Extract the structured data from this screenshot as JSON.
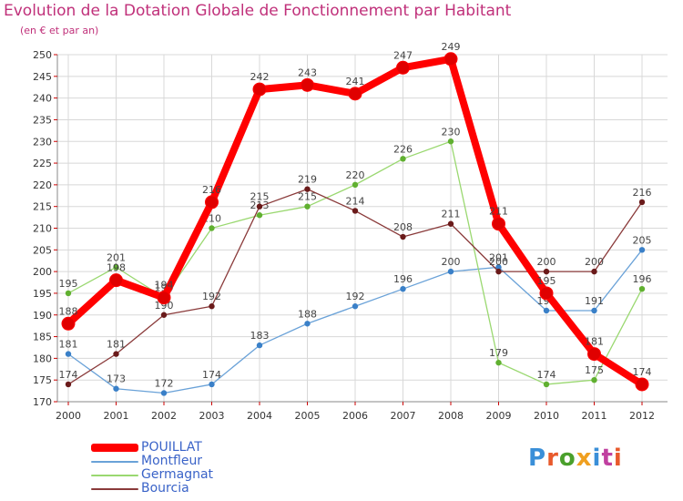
{
  "title": "Evolution de la Dotation Globale de Fonctionnement par Habitant",
  "subtitle": "(en € et par an)",
  "brand": {
    "text": "Proxiti",
    "letter_colors": [
      "#3a8fd8",
      "#e85a2c",
      "#4aa02c",
      "#f0a020",
      "#3a8fd8",
      "#c040a0",
      "#e85a2c"
    ]
  },
  "colors": {
    "axis": "#888888",
    "grid": "#d8d8d8",
    "tick_text": "#333333",
    "tick_mark": "#cc0000",
    "label_text": "#444444"
  },
  "chart_data": {
    "type": "line",
    "title": "Evolution de la Dotation Globale de Fonctionnement par Habitant",
    "ylabel": "(en € et par an)",
    "xlabel": "",
    "x": [
      "2000",
      "2001",
      "2002",
      "2003",
      "2004",
      "2005",
      "2006",
      "2007",
      "2008",
      "2009",
      "2010",
      "2011",
      "2012"
    ],
    "ylim": [
      170,
      250
    ],
    "yticks": [
      170,
      175,
      180,
      185,
      190,
      195,
      200,
      205,
      210,
      215,
      220,
      225,
      230,
      235,
      240,
      245,
      250
    ],
    "grid": true,
    "series": [
      {
        "name": "POUILLAT",
        "color": "#ff0000",
        "dot_color": "#e00000",
        "weight": "heavy",
        "values": [
          188,
          198,
          194,
          216,
          242,
          243,
          241,
          247,
          249,
          211,
          195,
          181,
          174
        ],
        "labels": [
          "188",
          "198",
          "194",
          "216",
          "242",
          "243",
          "241",
          "247",
          "249",
          "211",
          "195",
          "181",
          "174"
        ]
      },
      {
        "name": "Montfleur",
        "color": "#6aa2d8",
        "dot_color": "#3a80c8",
        "weight": "light",
        "values": [
          181,
          173,
          172,
          174,
          183,
          188,
          192,
          196,
          200,
          201,
          191,
          191,
          205
        ],
        "labels": [
          "181",
          "173",
          "172",
          "174",
          "183",
          "188",
          "192",
          "196",
          "200",
          "201",
          "191",
          "191",
          "205"
        ]
      },
      {
        "name": "Germagnat",
        "color": "#9ad870",
        "dot_color": "#60b030",
        "weight": "light",
        "values": [
          195,
          201,
          194,
          210,
          213,
          215,
          220,
          226,
          230,
          179,
          174,
          175,
          196
        ],
        "labels": [
          "195",
          "201",
          "194",
          "210",
          "213",
          "215",
          "220",
          "226",
          "230",
          "179",
          "174",
          "175",
          "196"
        ]
      },
      {
        "name": "Bourcia",
        "color": "#8a3a3a",
        "dot_color": "#6a1a1a",
        "weight": "light",
        "values": [
          174,
          181,
          190,
          192,
          215,
          219,
          214,
          208,
          211,
          200,
          200,
          200,
          216
        ],
        "labels": [
          "174",
          "181",
          "190",
          "192",
          "215",
          "219",
          "214",
          "208",
          "211",
          "200",
          "200",
          "200",
          "216"
        ]
      }
    ],
    "legend": {
      "placement": "bottom-left",
      "entries": [
        "POUILLAT",
        "Montfleur",
        "Germagnat",
        "Bourcia"
      ]
    }
  }
}
